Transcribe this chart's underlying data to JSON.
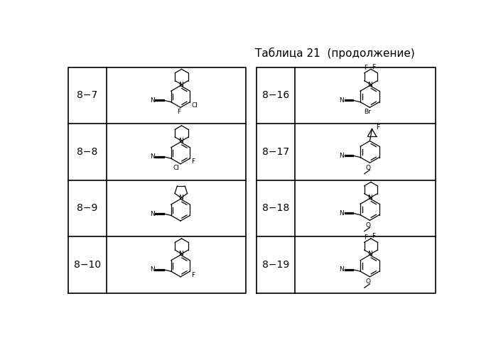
{
  "title": "Таблица 21  (продолжение)",
  "background_color": "#ffffff",
  "labels_left": [
    "8−7",
    "8−8",
    "8−9",
    "8−10"
  ],
  "labels_right": [
    "8−16",
    "8−17",
    "8−18",
    "8−19"
  ],
  "label_fontsize": 10,
  "title_fontsize": 11,
  "grid_color": "#000000"
}
